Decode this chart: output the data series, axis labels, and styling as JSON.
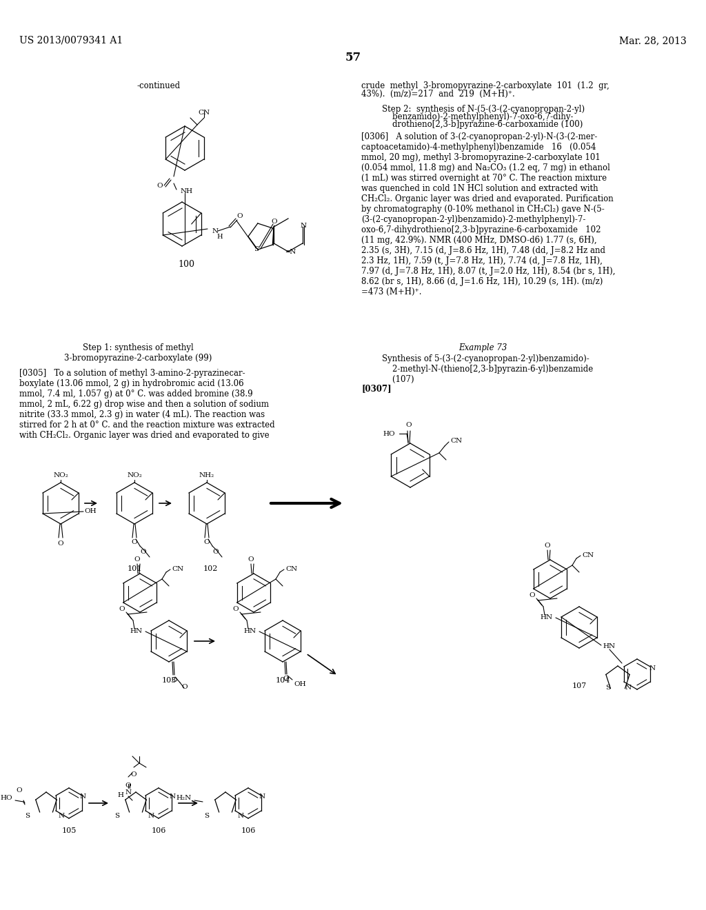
{
  "bg_color": "#ffffff",
  "text_color": "#000000",
  "header_left": "US 2013/0079341 A1",
  "header_right": "Mar. 28, 2013",
  "page_number": "57",
  "font_size_body": 8.5,
  "font_size_header": 10,
  "font_size_small": 7.5,
  "right_col_top1": "crude  methyl  3-bromopyrazine-2-carboxylate  101  (1.2  gr,",
  "right_col_top2": "43%).  (m/z)=217  and  219  (M+H)⁺.",
  "step2_line1": "Step 2:  synthesis of N-(5-(3-(2-cyanopropan-2-yl)",
  "step2_line2": "    benzamido)-2-methylphenyl)-7-oxo-6,7-dihy-",
  "step2_line3": "    drothieno[2,3-b]pyrazine-6-carboxamide (100)",
  "p0306_text": "[0306]   A solution of 3-(2-cyanopropan-2-yl)-N-(3-(2-mer-\ncaptoacetamido)-4-methylphenyl)benzamide   16   (0.054\nmmol, 20 mg), methyl 3-bromopyrazine-2-carboxylate 101\n(0.054 mmol, 11.8 mg) and Na₂CO₃ (1.2 eq, 7 mg) in ethanol\n(1 mL) was stirred overnight at 70° C. The reaction mixture\nwas quenched in cold 1N HCl solution and extracted with\nCH₂Cl₂. Organic layer was dried and evaporated. Purification\nby chromatography (0-10% methanol in CH₂Cl₂) gave N-(5-\n(3-(2-cyanopropan-2-yl)benzamido)-2-methylphenyl)-7-\noxo-6,7-dihydrothieno[2,3-b]pyrazine-6-carboxamide   102\n(11 mg, 42.9%). NMR (400 MHz, DMSO-d6) 1.77 (s, 6H),\n2.35 (s, 3H), 7.15 (d, J=8.6 Hz, 1H), 7.48 (dd, J=8.2 Hz and\n2.3 Hz, 1H), 7.59 (t, J=7.8 Hz, 1H), 7.74 (d, J=7.8 Hz, 1H),\n7.97 (d, J=7.8 Hz, 1H), 8.07 (t, J=2.0 Hz, 1H), 8.54 (br s, 1H),\n8.62 (br s, 1H), 8.66 (d, J=1.6 Hz, 1H), 10.29 (s, 1H). (m/z)\n=473 (M+H)⁺.",
  "example73": "Example 73",
  "synth_title": "Synthesis of 5-(3-(2-cyanopropan-2-yl)benzamido)-\n    2-methyl-N-(thieno[2,3-b]pyrazin-6-yl)benzamide\n    (107)",
  "p0307": "[0307]",
  "step1_text": "Step 1: synthesis of methyl\n3-bromopyrazine-2-carboxylate (99)",
  "p0305_text": "[0305]   To a solution of methyl 3-amino-2-pyrazinecar-\nboxylate (13.06 mmol, 2 g) in hydrobromic acid (13.06\nmmol, 7.4 ml, 1.057 g) at 0° C. was added bromine (38.9\nmmol, 2 mL, 6.22 g) drop wise and then a solution of sodium\nnitrite (33.3 mmol, 2.3 g) in water (4 mL). The reaction was\nstirred for 2 h at 0° C. and the reaction mixture was extracted\nwith CH₂Cl₂. Organic layer was dried and evaporated to give"
}
